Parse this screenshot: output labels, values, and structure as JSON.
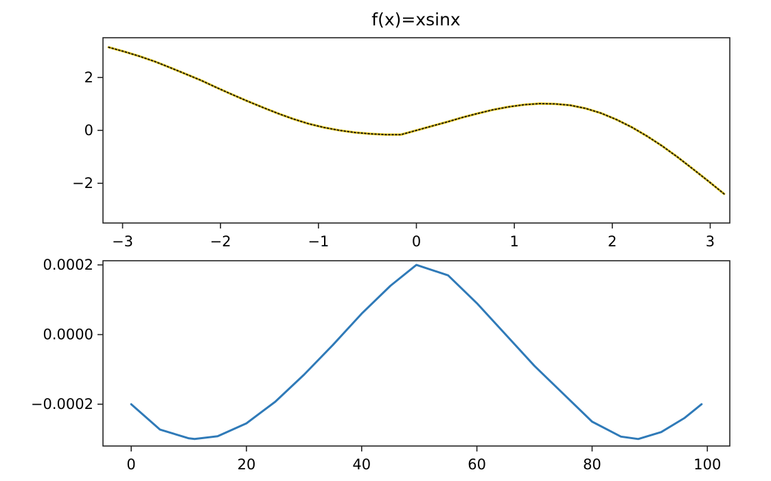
{
  "chart_data": [
    {
      "type": "line",
      "title": "f(x)=xsinx",
      "title_color": "#e8232c",
      "xlabel": "",
      "ylabel": "",
      "xlim": [
        -3.2,
        3.2
      ],
      "ylim": [
        -3.5,
        3.5
      ],
      "xticks": [
        -3,
        -2,
        -1,
        0,
        1,
        2,
        3
      ],
      "xtick_labels": [
        "−3",
        "−2",
        "−1",
        "0",
        "1",
        "2",
        "3"
      ],
      "yticks": [
        2,
        0,
        -2
      ],
      "ytick_labels": [
        "2",
        "0",
        "−2"
      ],
      "grid": false,
      "series": [
        {
          "line_color": "#1a1a1a",
          "overlay_color": "#f5d21a",
          "line_style": "dotted",
          "x": [
            -3.1416,
            -2.9845,
            -2.8274,
            -2.6704,
            -2.5133,
            -2.3562,
            -2.1991,
            -2.042,
            -1.885,
            -1.7279,
            -1.5708,
            -1.4137,
            -1.2566,
            -1.0996,
            -0.9425,
            -0.7854,
            -0.6283,
            -0.4712,
            -0.3142,
            -0.1571,
            0.0,
            0.1571,
            0.3142,
            0.4712,
            0.6283,
            0.7854,
            0.9425,
            1.0996,
            1.2566,
            1.4137,
            1.5708,
            1.7279,
            1.885,
            2.042,
            2.1991,
            2.3562,
            2.5133,
            2.6704,
            2.8274,
            2.9845,
            3.1416
          ],
          "y": [
            3.14,
            2.98,
            2.8,
            2.6,
            2.37,
            2.13,
            1.89,
            1.62,
            1.36,
            1.11,
            0.87,
            0.64,
            0.43,
            0.25,
            0.11,
            0.0,
            -0.08,
            -0.13,
            -0.16,
            -0.16,
            0.0,
            0.16,
            0.32,
            0.49,
            0.64,
            0.78,
            0.89,
            0.97,
            1.01,
            1.0,
            0.95,
            0.83,
            0.65,
            0.41,
            0.12,
            -0.22,
            -0.6,
            -1.02,
            -1.47,
            -1.93,
            -2.4
          ]
        }
      ]
    },
    {
      "type": "line",
      "title": "",
      "xlabel": "",
      "ylabel": "",
      "xlim": [
        -4.9,
        103.9
      ],
      "ylim": [
        -0.00032,
        0.000212
      ],
      "xticks": [
        0,
        20,
        40,
        60,
        80,
        100
      ],
      "xtick_labels": [
        "0",
        "20",
        "40",
        "60",
        "80",
        "100"
      ],
      "yticks": [
        0.0002,
        0.0,
        -0.0002
      ],
      "ytick_labels": [
        "0.0002",
        "0.0000",
        "−0.0002"
      ],
      "grid": false,
      "series": [
        {
          "line_color": "#2f7ab8",
          "x": [
            0,
            5,
            10,
            11,
            15,
            20,
            25,
            30,
            35,
            40,
            45,
            49.5,
            55,
            60,
            65,
            70,
            75,
            80,
            85,
            88,
            92,
            96,
            99
          ],
          "y": [
            -0.0002,
            -0.000273,
            -0.000298,
            -0.0003,
            -0.000292,
            -0.000255,
            -0.000193,
            -0.000115,
            -3e-05,
            6e-05,
            0.00014,
            0.0002,
            0.00017,
            9e-05,
            0.0,
            -9e-05,
            -0.00017,
            -0.00025,
            -0.000293,
            -0.0003,
            -0.00028,
            -0.00024,
            -0.0002
          ]
        }
      ]
    }
  ]
}
